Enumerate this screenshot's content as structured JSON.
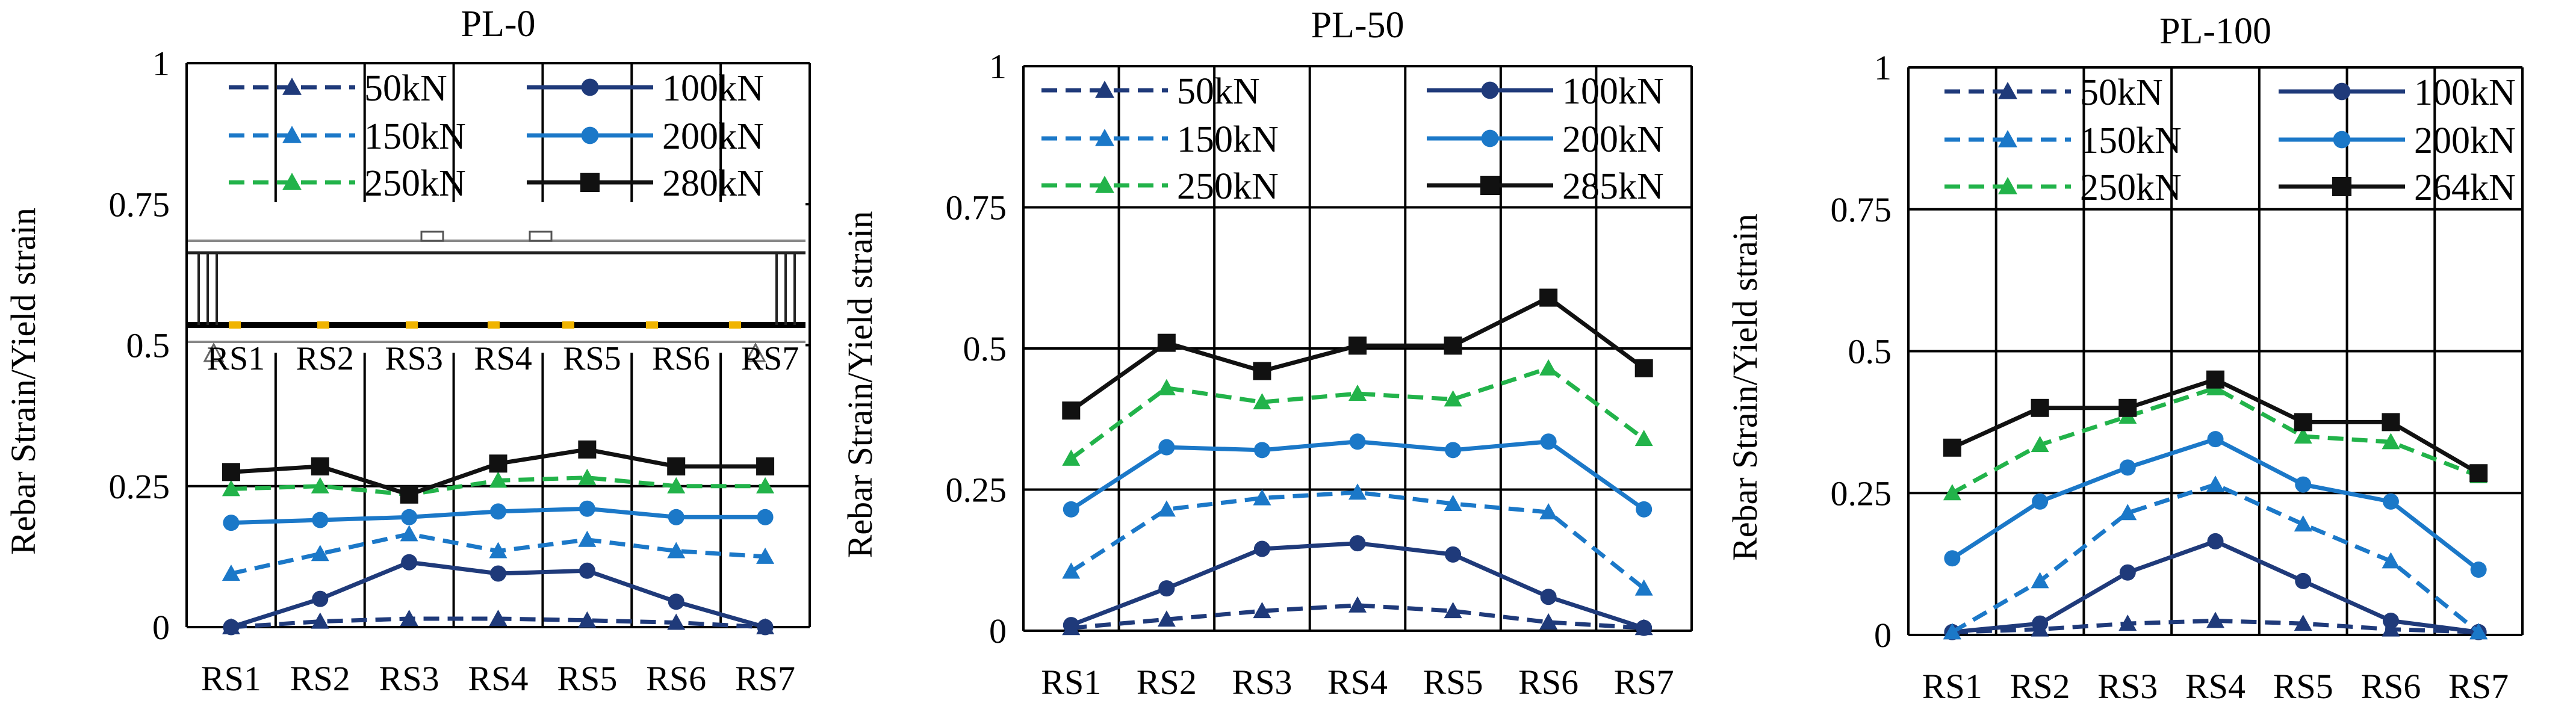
{
  "chart_data": [
    {
      "type": "line",
      "title": "PL-0",
      "xlabel": "",
      "ylabel": "Rebar Strain/Yield strain",
      "ylim": [
        0,
        1
      ],
      "yticks": [
        "0",
        "0.25",
        "0.5",
        "0.75",
        "1"
      ],
      "categories": [
        "RS1",
        "RS2",
        "RS3",
        "RS4",
        "RS5",
        "RS6",
        "RS7"
      ],
      "legend_position": "top",
      "inset_labels": [
        "RS1",
        "RS2",
        "RS3",
        "RS4",
        "RS5",
        "RS6",
        "RS7"
      ],
      "series": [
        {
          "name": "50kN",
          "values": [
            0.0,
            0.01,
            0.015,
            0.015,
            0.012,
            0.008,
            0.0
          ],
          "color": "#1f3a7a",
          "dash": true,
          "marker": "triangle"
        },
        {
          "name": "100kN",
          "values": [
            0.0,
            0.05,
            0.115,
            0.095,
            0.1,
            0.045,
            0.0
          ],
          "color": "#1f3a7a",
          "dash": false,
          "marker": "circle"
        },
        {
          "name": "150kN",
          "values": [
            0.095,
            0.13,
            0.165,
            0.135,
            0.155,
            0.135,
            0.125
          ],
          "color": "#1b78c8",
          "dash": true,
          "marker": "triangle"
        },
        {
          "name": "200kN",
          "values": [
            0.185,
            0.19,
            0.195,
            0.205,
            0.21,
            0.195,
            0.195
          ],
          "color": "#1b78c8",
          "dash": false,
          "marker": "circle"
        },
        {
          "name": "250kN",
          "values": [
            0.245,
            0.25,
            0.235,
            0.26,
            0.265,
            0.25,
            0.25
          ],
          "color": "#22b34a",
          "dash": true,
          "marker": "triangle"
        },
        {
          "name": "280kN",
          "values": [
            0.275,
            0.285,
            0.235,
            0.29,
            0.315,
            0.285,
            0.285
          ],
          "color": "#111111",
          "dash": false,
          "marker": "square"
        }
      ]
    },
    {
      "type": "line",
      "title": "PL-50",
      "xlabel": "",
      "ylabel": "Rebar Strain/Yield strain",
      "ylim": [
        0,
        1
      ],
      "yticks": [
        "0",
        "0.25",
        "0.5",
        "0.75",
        "1"
      ],
      "categories": [
        "RS1",
        "RS2",
        "RS3",
        "RS4",
        "RS5",
        "RS6",
        "RS7"
      ],
      "legend_position": "top",
      "series": [
        {
          "name": "50kN",
          "values": [
            0.005,
            0.02,
            0.035,
            0.045,
            0.035,
            0.015,
            0.005
          ],
          "color": "#1f3a7a",
          "dash": true,
          "marker": "triangle"
        },
        {
          "name": "100kN",
          "values": [
            0.01,
            0.075,
            0.145,
            0.155,
            0.135,
            0.06,
            0.005
          ],
          "color": "#1f3a7a",
          "dash": false,
          "marker": "circle"
        },
        {
          "name": "150kN",
          "values": [
            0.105,
            0.215,
            0.235,
            0.245,
            0.225,
            0.21,
            0.075
          ],
          "color": "#1b78c8",
          "dash": true,
          "marker": "triangle"
        },
        {
          "name": "200kN",
          "values": [
            0.215,
            0.325,
            0.32,
            0.335,
            0.32,
            0.335,
            0.215
          ],
          "color": "#1b78c8",
          "dash": false,
          "marker": "circle"
        },
        {
          "name": "250kN",
          "values": [
            0.305,
            0.43,
            0.405,
            0.42,
            0.41,
            0.465,
            0.34
          ],
          "color": "#22b34a",
          "dash": true,
          "marker": "triangle"
        },
        {
          "name": "285kN",
          "values": [
            0.39,
            0.51,
            0.46,
            0.505,
            0.505,
            0.59,
            0.465
          ],
          "color": "#111111",
          "dash": false,
          "marker": "square"
        }
      ]
    },
    {
      "type": "line",
      "title": "PL-100",
      "xlabel": "",
      "ylabel": "Rebar Strain/Yield strain",
      "ylim": [
        0,
        1
      ],
      "yticks": [
        "0",
        "0.25",
        "0.5",
        "0.75",
        "1"
      ],
      "categories": [
        "RS1",
        "RS2",
        "RS3",
        "RS4",
        "RS5",
        "RS6",
        "RS7"
      ],
      "legend_position": "top",
      "series": [
        {
          "name": "50kN",
          "values": [
            0.005,
            0.01,
            0.02,
            0.025,
            0.02,
            0.01,
            0.005
          ],
          "color": "#1f3a7a",
          "dash": true,
          "marker": "triangle"
        },
        {
          "name": "100kN",
          "values": [
            0.005,
            0.02,
            0.11,
            0.165,
            0.095,
            0.025,
            0.005
          ],
          "color": "#1f3a7a",
          "dash": false,
          "marker": "circle"
        },
        {
          "name": "150kN",
          "values": [
            0.005,
            0.095,
            0.215,
            0.265,
            0.195,
            0.13,
            0.005
          ],
          "color": "#1b78c8",
          "dash": true,
          "marker": "triangle"
        },
        {
          "name": "200kN",
          "values": [
            0.135,
            0.235,
            0.295,
            0.345,
            0.265,
            0.235,
            0.115
          ],
          "color": "#1b78c8",
          "dash": false,
          "marker": "circle"
        },
        {
          "name": "250kN",
          "values": [
            0.25,
            0.335,
            0.385,
            0.435,
            0.35,
            0.34,
            0.28
          ],
          "color": "#22b34a",
          "dash": true,
          "marker": "triangle"
        },
        {
          "name": "264kN",
          "values": [
            0.33,
            0.4,
            0.4,
            0.45,
            0.375,
            0.375,
            0.285
          ],
          "color": "#111111",
          "dash": false,
          "marker": "square"
        }
      ]
    }
  ]
}
